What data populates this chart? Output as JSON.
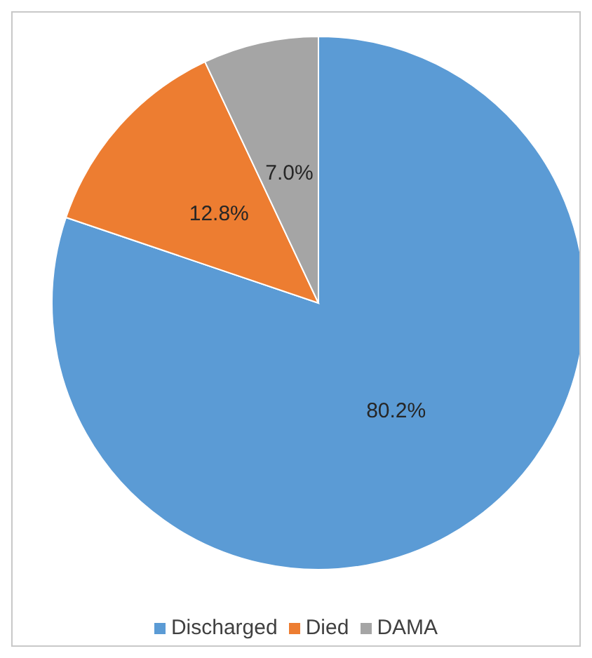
{
  "chart_data": {
    "type": "pie",
    "categories": [
      "Discharged",
      "Died",
      "DAMA"
    ],
    "values": [
      80.2,
      12.8,
      7.0
    ],
    "colors": [
      "#5b9bd5",
      "#ed7d31",
      "#a5a5a5"
    ],
    "value_labels": [
      "80.2%",
      "12.8%",
      "7.0%"
    ],
    "legend": "bottom"
  }
}
